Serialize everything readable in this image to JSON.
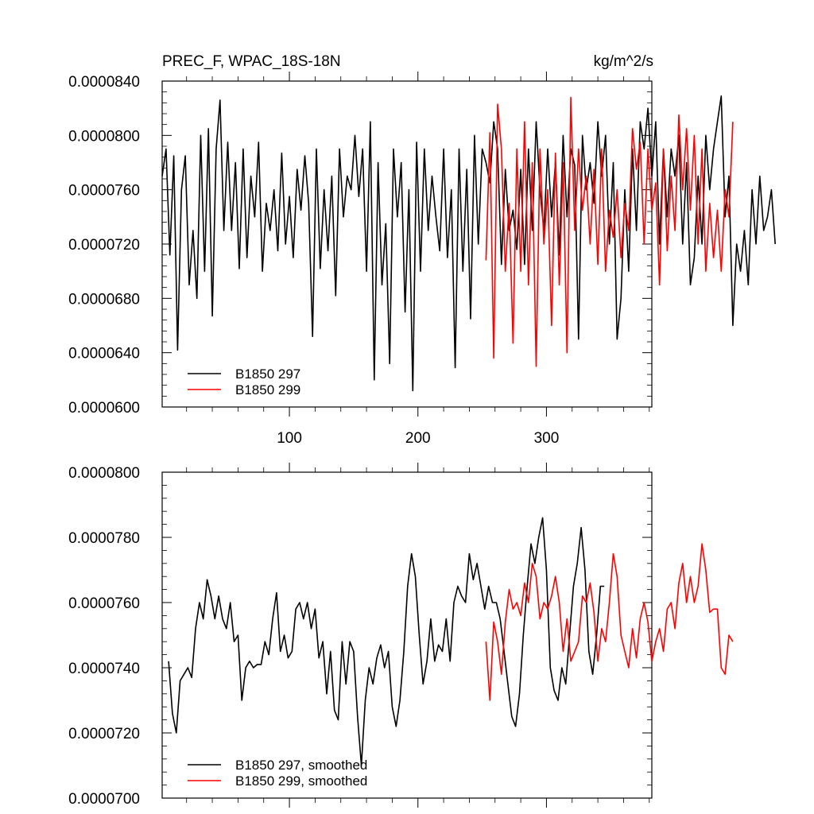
{
  "figure": {
    "title_left": "PREC_F, WPAC_18S-18N",
    "title_right": "kg/m^2/s"
  },
  "chart_data": [
    {
      "type": "line",
      "title": "PREC_F, WPAC_18S-18N",
      "units": "kg/m^2/s",
      "xlim": [
        1,
        382
      ],
      "xticks": [
        100,
        200,
        300
      ],
      "xtick_labels": [
        "100",
        "200",
        "300"
      ],
      "ylim": [
        6e-05,
        8.4e-05
      ],
      "yticks": [
        6e-05,
        6.4e-05,
        6.8e-05,
        7.2e-05,
        7.6e-05,
        8e-05,
        8.4e-05
      ],
      "ytick_labels": [
        "0.0000600",
        "0.0000640",
        "0.0000680",
        "0.0000720",
        "0.0000760",
        "0.0000800",
        "0.0000840"
      ],
      "grid": false,
      "legend_position": "bottom-left",
      "series": [
        {
          "name": "B1850 297",
          "color": "#000000",
          "x_start": 1,
          "x_step": 3,
          "values": [
            7.7e-05,
            7.9e-05,
            7.12e-05,
            7.85e-05,
            6.42e-05,
            7.6e-05,
            7.85e-05,
            6.9e-05,
            7.3e-05,
            6.8e-05,
            8e-05,
            7e-05,
            8.05e-05,
            6.67e-05,
            7.9e-05,
            8.26e-05,
            7.3e-05,
            7.95e-05,
            7.3e-05,
            7.8e-05,
            7.02e-05,
            7.9e-05,
            7.1e-05,
            7.7e-05,
            7.4e-05,
            7.95e-05,
            7e-05,
            7.5e-05,
            7.3e-05,
            7.6e-05,
            7.15e-05,
            7.87e-05,
            7.2e-05,
            7.55e-05,
            7.1e-05,
            7.75e-05,
            7.45e-05,
            7.85e-05,
            7.5e-05,
            6.52e-05,
            7.9e-05,
            7.02e-05,
            7.6e-05,
            7.15e-05,
            7.7e-05,
            6.82e-05,
            7.9e-05,
            7.4e-05,
            7.7e-05,
            7.6e-05,
            8e-05,
            7.55e-05,
            7.9e-05,
            7e-05,
            8.1e-05,
            6.2e-05,
            7.8e-05,
            6.9e-05,
            7.35e-05,
            6.32e-05,
            7.9e-05,
            7.4e-05,
            7.8e-05,
            6.7e-05,
            7.6e-05,
            6.12e-05,
            7.95e-05,
            7e-05,
            7.9e-05,
            7.3e-05,
            7.7e-05,
            7.4e-05,
            7.15e-05,
            7.9e-05,
            7.1e-05,
            7.6e-05,
            6.29e-05,
            7.9e-05,
            7e-05,
            7.75e-05,
            6.65e-05,
            8e-05,
            7.2e-05,
            7.9e-05,
            7.8e-05,
            7.65e-05,
            8.1e-05,
            7.9e-05,
            7.05e-05,
            7.75e-05,
            7.3e-05,
            7.45e-05,
            7.16e-05,
            7.75e-05,
            7.05e-05,
            7.9e-05,
            7.3e-05,
            8.1e-05,
            7.6e-05,
            7.3e-05,
            7.9e-05,
            7.4e-05,
            7.8e-05,
            7.12e-05,
            8e-05,
            7.4e-05,
            7.9e-05,
            7.78e-05,
            6.5e-05,
            8e-05,
            7.6e-05,
            7.8e-05,
            7.5e-05,
            8.1e-05,
            7.7e-05,
            8e-05,
            7.2e-05,
            7.8e-05,
            6.5e-05,
            6.8e-05,
            7.6e-05,
            7e-05,
            7.9e-05,
            7.3e-05,
            8.1e-05,
            7.9e-05,
            8.2e-05,
            7.7e-05,
            8.1e-05,
            7.2e-05,
            7.9e-05,
            7.4e-05,
            7.9e-05,
            7.7e-05,
            8e-05,
            7.2e-05,
            7.8e-05,
            6.9e-05,
            7.1e-05,
            7.7e-05,
            7.2e-05,
            8e-05,
            7.6e-05,
            7.9e-05,
            8.1e-05,
            8.29e-05,
            7.4e-05,
            7.7e-05,
            6.6e-05,
            7.2e-05,
            7e-05,
            7.3e-05,
            6.9e-05,
            7.6e-05,
            7.2e-05,
            7.7e-05,
            7.3e-05,
            7.4e-05,
            7.6e-05,
            7.2e-05
          ]
        },
        {
          "name": "B1850 299",
          "color": "#ff0000",
          "x_start": 253,
          "x_step": 3,
          "values": [
            7.08e-05,
            8.02e-05,
            6.36e-05,
            8.23e-05,
            7.9e-05,
            7e-05,
            7.5e-05,
            6.47e-05,
            7.9e-05,
            7e-05,
            8.1e-05,
            6.9e-05,
            7.8e-05,
            6.3e-05,
            7.9e-05,
            7.2e-05,
            7.6e-05,
            6.6e-05,
            7.87e-05,
            6.9e-05,
            7.8e-05,
            6.4e-05,
            8.28e-05,
            7.3e-05,
            7.9e-05,
            7.45e-05,
            7.7e-05,
            7.2e-05,
            7.75e-05,
            7.05e-05,
            7.9e-05,
            7e-05,
            7.45e-05,
            7.25e-05,
            7.6e-05,
            7.1e-05,
            7.5e-05,
            7.3e-05,
            8.05e-05,
            7.75e-05,
            7.95e-05,
            7.2e-05,
            7.9e-05,
            7.45e-05,
            7.65e-05,
            6.9e-05,
            7.9e-05,
            7.15e-05,
            7.7e-05,
            7.3e-05,
            8.15e-05,
            7.6e-05,
            8.05e-05,
            7.45e-05,
            8e-05,
            7.2e-05,
            7.9e-05,
            7e-05,
            7.5e-05,
            7.1e-05,
            7.45e-05,
            7e-05,
            7.6e-05,
            7.4e-05,
            8.1e-05
          ]
        }
      ]
    },
    {
      "type": "line",
      "xlim": [
        1,
        382
      ],
      "ylim": [
        7e-05,
        8e-05
      ],
      "yticks": [
        7e-05,
        7.2e-05,
        7.4e-05,
        7.6e-05,
        7.8e-05,
        8e-05
      ],
      "ytick_labels": [
        "0.0000700",
        "0.0000720",
        "0.0000740",
        "0.0000760",
        "0.0000780",
        "0.0000800"
      ],
      "grid": false,
      "legend_position": "bottom-left",
      "series": [
        {
          "name": "B1850 297, smoothed",
          "color": "#000000",
          "x_start": 6,
          "x_step": 3,
          "values": [
            7.42e-05,
            7.26e-05,
            7.2e-05,
            7.36e-05,
            7.38e-05,
            7.4e-05,
            7.37e-05,
            7.52e-05,
            7.6e-05,
            7.55e-05,
            7.67e-05,
            7.62e-05,
            7.55e-05,
            7.62e-05,
            7.55e-05,
            7.52e-05,
            7.6e-05,
            7.48e-05,
            7.5e-05,
            7.3e-05,
            7.4e-05,
            7.42e-05,
            7.4e-05,
            7.41e-05,
            7.41e-05,
            7.48e-05,
            7.44e-05,
            7.55e-05,
            7.63e-05,
            7.45e-05,
            7.5e-05,
            7.43e-05,
            7.45e-05,
            7.58e-05,
            7.6e-05,
            7.55e-05,
            7.6e-05,
            7.52e-05,
            7.58e-05,
            7.43e-05,
            7.48e-05,
            7.32e-05,
            7.45e-05,
            7.27e-05,
            7.24e-05,
            7.48e-05,
            7.35e-05,
            7.48e-05,
            7.45e-05,
            7.25e-05,
            7.1e-05,
            7.3e-05,
            7.4e-05,
            7.35e-05,
            7.43e-05,
            7.47e-05,
            7.4e-05,
            7.45e-05,
            7.28e-05,
            7.22e-05,
            7.3e-05,
            7.45e-05,
            7.65e-05,
            7.75e-05,
            7.68e-05,
            7.5e-05,
            7.35e-05,
            7.42e-05,
            7.55e-05,
            7.42e-05,
            7.47e-05,
            7.45e-05,
            7.55e-05,
            7.42e-05,
            7.6e-05,
            7.65e-05,
            7.62e-05,
            7.6e-05,
            7.75e-05,
            7.67e-05,
            7.72e-05,
            7.65e-05,
            7.58e-05,
            7.65e-05,
            7.6e-05,
            7.6e-05,
            7.55e-05,
            7.45e-05,
            7.35e-05,
            7.25e-05,
            7.22e-05,
            7.32e-05,
            7.5e-05,
            7.65e-05,
            7.78e-05,
            7.72e-05,
            7.8e-05,
            7.86e-05,
            7.7e-05,
            7.4e-05,
            7.33e-05,
            7.3e-05,
            7.4e-05,
            7.35e-05,
            7.5e-05,
            7.65e-05,
            7.72e-05,
            7.83e-05,
            7.7e-05,
            7.45e-05,
            7.38e-05,
            7.5e-05,
            7.65e-05,
            7.65e-05
          ]
        },
        {
          "name": "B1850 299, smoothed",
          "color": "#ff0000",
          "x_start": 253,
          "x_step": 3,
          "values": [
            7.48e-05,
            7.3e-05,
            7.54e-05,
            7.48e-05,
            7.38e-05,
            7.54e-05,
            7.64e-05,
            7.58e-05,
            7.6e-05,
            7.56e-05,
            7.66e-05,
            7.6e-05,
            7.72e-05,
            7.68e-05,
            7.55e-05,
            7.6e-05,
            7.58e-05,
            7.62e-05,
            7.68e-05,
            7.6e-05,
            7.45e-05,
            7.55e-05,
            7.42e-05,
            7.45e-05,
            7.48e-05,
            7.62e-05,
            7.6e-05,
            7.66e-05,
            7.57e-05,
            7.42e-05,
            7.52e-05,
            7.48e-05,
            7.6e-05,
            7.75e-05,
            7.68e-05,
            7.5e-05,
            7.45e-05,
            7.4e-05,
            7.52e-05,
            7.43e-05,
            7.55e-05,
            7.6e-05,
            7.54e-05,
            7.42e-05,
            7.48e-05,
            7.52e-05,
            7.45e-05,
            7.58e-05,
            7.6e-05,
            7.52e-05,
            7.66e-05,
            7.72e-05,
            7.6e-05,
            7.68e-05,
            7.6e-05,
            7.65e-05,
            7.78e-05,
            7.7e-05,
            7.57e-05,
            7.58e-05,
            7.58e-05,
            7.4e-05,
            7.38e-05,
            7.5e-05,
            7.48e-05
          ]
        }
      ]
    }
  ]
}
